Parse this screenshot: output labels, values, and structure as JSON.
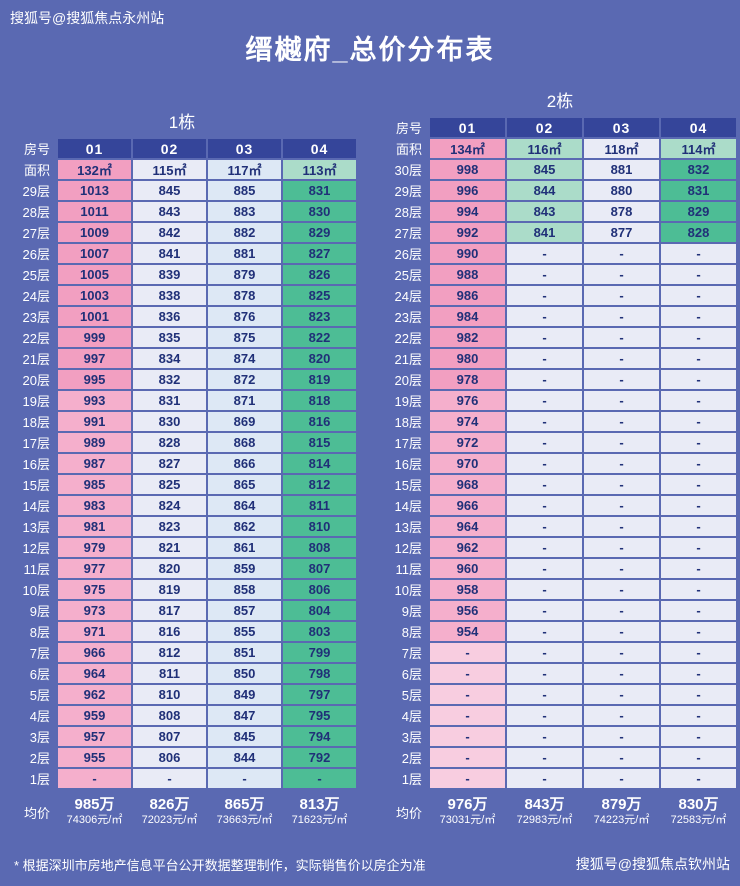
{
  "page": {
    "watermark_top": "搜狐号@搜狐焦点永州站",
    "title": "缙樾府_总价分布表",
    "footnote": "* 根据深圳市房地产信息平台公开数据整理制作，实际销售价以房企为准",
    "watermark_bottom": "搜狐号@搜狐焦点钦州站"
  },
  "palette": {
    "bg": "#5a69b2",
    "hd": "#35459a",
    "p1": "#f29fc1",
    "p2": "#f5afcc",
    "p3": "#f8cde0",
    "lv": "#e9ebf6",
    "bl": "#dde8f5",
    "mt": "#abdcc9",
    "gr": "#4dbd95",
    "cell_text": "#203078"
  },
  "chart_data": [
    {
      "type": "table",
      "title": "1栋",
      "room_label": "房号",
      "area_label": "面积",
      "avg_label": "均价",
      "rooms": [
        "01",
        "02",
        "03",
        "04"
      ],
      "areas": [
        "132㎡",
        "115㎡",
        "117㎡",
        "113㎡"
      ],
      "area_colors": [
        "p1",
        "lv",
        "bl",
        "mt"
      ],
      "floors": [
        {
          "floor": "29层",
          "c": [
            "p1",
            "lv",
            "bl",
            "gr"
          ],
          "values": [
            "1013",
            "845",
            "885",
            "831"
          ]
        },
        {
          "floor": "28层",
          "c": [
            "p1",
            "lv",
            "bl",
            "gr"
          ],
          "values": [
            "1011",
            "843",
            "883",
            "830"
          ]
        },
        {
          "floor": "27层",
          "c": [
            "p1",
            "lv",
            "bl",
            "gr"
          ],
          "values": [
            "1009",
            "842",
            "882",
            "829"
          ]
        },
        {
          "floor": "26层",
          "c": [
            "p1",
            "lv",
            "bl",
            "gr"
          ],
          "values": [
            "1007",
            "841",
            "881",
            "827"
          ]
        },
        {
          "floor": "25层",
          "c": [
            "p1",
            "lv",
            "bl",
            "gr"
          ],
          "values": [
            "1005",
            "839",
            "879",
            "826"
          ]
        },
        {
          "floor": "24层",
          "c": [
            "p1",
            "lv",
            "bl",
            "gr"
          ],
          "values": [
            "1003",
            "838",
            "878",
            "825"
          ]
        },
        {
          "floor": "23层",
          "c": [
            "p1",
            "lv",
            "bl",
            "gr"
          ],
          "values": [
            "1001",
            "836",
            "876",
            "823"
          ]
        },
        {
          "floor": "22层",
          "c": [
            "p1",
            "lv",
            "bl",
            "gr"
          ],
          "values": [
            "999",
            "835",
            "875",
            "822"
          ]
        },
        {
          "floor": "21层",
          "c": [
            "p1",
            "lv",
            "bl",
            "gr"
          ],
          "values": [
            "997",
            "834",
            "874",
            "820"
          ]
        },
        {
          "floor": "20层",
          "c": [
            "p1",
            "lv",
            "bl",
            "gr"
          ],
          "values": [
            "995",
            "832",
            "872",
            "819"
          ]
        },
        {
          "floor": "19层",
          "c": [
            "p2",
            "lv",
            "bl",
            "gr"
          ],
          "values": [
            "993",
            "831",
            "871",
            "818"
          ]
        },
        {
          "floor": "18层",
          "c": [
            "p2",
            "lv",
            "bl",
            "gr"
          ],
          "values": [
            "991",
            "830",
            "869",
            "816"
          ]
        },
        {
          "floor": "17层",
          "c": [
            "p2",
            "lv",
            "bl",
            "gr"
          ],
          "values": [
            "989",
            "828",
            "868",
            "815"
          ]
        },
        {
          "floor": "16层",
          "c": [
            "p2",
            "lv",
            "bl",
            "gr"
          ],
          "values": [
            "987",
            "827",
            "866",
            "814"
          ]
        },
        {
          "floor": "15层",
          "c": [
            "p2",
            "lv",
            "bl",
            "gr"
          ],
          "values": [
            "985",
            "825",
            "865",
            "812"
          ]
        },
        {
          "floor": "14层",
          "c": [
            "p2",
            "lv",
            "bl",
            "gr"
          ],
          "values": [
            "983",
            "824",
            "864",
            "811"
          ]
        },
        {
          "floor": "13层",
          "c": [
            "p2",
            "lv",
            "bl",
            "gr"
          ],
          "values": [
            "981",
            "823",
            "862",
            "810"
          ]
        },
        {
          "floor": "12层",
          "c": [
            "p2",
            "lv",
            "bl",
            "gr"
          ],
          "values": [
            "979",
            "821",
            "861",
            "808"
          ]
        },
        {
          "floor": "11层",
          "c": [
            "p2",
            "lv",
            "bl",
            "gr"
          ],
          "values": [
            "977",
            "820",
            "859",
            "807"
          ]
        },
        {
          "floor": "10层",
          "c": [
            "p2",
            "lv",
            "bl",
            "gr"
          ],
          "values": [
            "975",
            "819",
            "858",
            "806"
          ]
        },
        {
          "floor": "9层",
          "c": [
            "p2",
            "lv",
            "bl",
            "gr"
          ],
          "values": [
            "973",
            "817",
            "857",
            "804"
          ]
        },
        {
          "floor": "8层",
          "c": [
            "p2",
            "lv",
            "bl",
            "gr"
          ],
          "values": [
            "971",
            "816",
            "855",
            "803"
          ]
        },
        {
          "floor": "7层",
          "c": [
            "p2",
            "lv",
            "bl",
            "gr"
          ],
          "values": [
            "966",
            "812",
            "851",
            "799"
          ]
        },
        {
          "floor": "6层",
          "c": [
            "p2",
            "lv",
            "bl",
            "gr"
          ],
          "values": [
            "964",
            "811",
            "850",
            "798"
          ]
        },
        {
          "floor": "5层",
          "c": [
            "p2",
            "lv",
            "bl",
            "gr"
          ],
          "values": [
            "962",
            "810",
            "849",
            "797"
          ]
        },
        {
          "floor": "4层",
          "c": [
            "p2",
            "lv",
            "bl",
            "gr"
          ],
          "values": [
            "959",
            "808",
            "847",
            "795"
          ]
        },
        {
          "floor": "3层",
          "c": [
            "p2",
            "lv",
            "bl",
            "gr"
          ],
          "values": [
            "957",
            "807",
            "845",
            "794"
          ]
        },
        {
          "floor": "2层",
          "c": [
            "p2",
            "lv",
            "bl",
            "gr"
          ],
          "values": [
            "955",
            "806",
            "844",
            "792"
          ]
        },
        {
          "floor": "1层",
          "c": [
            "p2",
            "lv",
            "bl",
            "gr"
          ],
          "values": [
            "-",
            "-",
            "-",
            "-"
          ]
        }
      ],
      "avg": [
        {
          "price": "985万",
          "unit": "74306元/㎡"
        },
        {
          "price": "826万",
          "unit": "72023元/㎡"
        },
        {
          "price": "865万",
          "unit": "73663元/㎡"
        },
        {
          "price": "813万",
          "unit": "71623元/㎡"
        }
      ]
    },
    {
      "type": "table",
      "title": "2栋",
      "room_label": "房号",
      "area_label": "面积",
      "avg_label": "均价",
      "rooms": [
        "01",
        "02",
        "03",
        "04"
      ],
      "areas": [
        "134㎡",
        "116㎡",
        "118㎡",
        "114㎡"
      ],
      "area_colors": [
        "p1",
        "mt",
        "lv",
        "mt"
      ],
      "floors": [
        {
          "floor": "30层",
          "c": [
            "p1",
            "mt",
            "lv",
            "gr"
          ],
          "values": [
            "998",
            "845",
            "881",
            "832"
          ]
        },
        {
          "floor": "29层",
          "c": [
            "p1",
            "mt",
            "lv",
            "gr"
          ],
          "values": [
            "996",
            "844",
            "880",
            "831"
          ]
        },
        {
          "floor": "28层",
          "c": [
            "p1",
            "mt",
            "lv",
            "gr"
          ],
          "values": [
            "994",
            "843",
            "878",
            "829"
          ]
        },
        {
          "floor": "27层",
          "c": [
            "p1",
            "mt",
            "lv",
            "gr"
          ],
          "values": [
            "992",
            "841",
            "877",
            "828"
          ]
        },
        {
          "floor": "26层",
          "c": [
            "p1",
            "lv",
            "lv",
            "lv"
          ],
          "values": [
            "990",
            "-",
            "-",
            "-"
          ]
        },
        {
          "floor": "25层",
          "c": [
            "p1",
            "lv",
            "lv",
            "lv"
          ],
          "values": [
            "988",
            "-",
            "-",
            "-"
          ]
        },
        {
          "floor": "24层",
          "c": [
            "p1",
            "lv",
            "lv",
            "lv"
          ],
          "values": [
            "986",
            "-",
            "-",
            "-"
          ]
        },
        {
          "floor": "23层",
          "c": [
            "p1",
            "lv",
            "lv",
            "lv"
          ],
          "values": [
            "984",
            "-",
            "-",
            "-"
          ]
        },
        {
          "floor": "22层",
          "c": [
            "p1",
            "lv",
            "lv",
            "lv"
          ],
          "values": [
            "982",
            "-",
            "-",
            "-"
          ]
        },
        {
          "floor": "21层",
          "c": [
            "p1",
            "lv",
            "lv",
            "lv"
          ],
          "values": [
            "980",
            "-",
            "-",
            "-"
          ]
        },
        {
          "floor": "20层",
          "c": [
            "p1",
            "lv",
            "lv",
            "lv"
          ],
          "values": [
            "978",
            "-",
            "-",
            "-"
          ]
        },
        {
          "floor": "19层",
          "c": [
            "p2",
            "lv",
            "lv",
            "lv"
          ],
          "values": [
            "976",
            "-",
            "-",
            "-"
          ]
        },
        {
          "floor": "18层",
          "c": [
            "p2",
            "lv",
            "lv",
            "lv"
          ],
          "values": [
            "974",
            "-",
            "-",
            "-"
          ]
        },
        {
          "floor": "17层",
          "c": [
            "p2",
            "lv",
            "lv",
            "lv"
          ],
          "values": [
            "972",
            "-",
            "-",
            "-"
          ]
        },
        {
          "floor": "16层",
          "c": [
            "p2",
            "lv",
            "lv",
            "lv"
          ],
          "values": [
            "970",
            "-",
            "-",
            "-"
          ]
        },
        {
          "floor": "15层",
          "c": [
            "p2",
            "lv",
            "lv",
            "lv"
          ],
          "values": [
            "968",
            "-",
            "-",
            "-"
          ]
        },
        {
          "floor": "14层",
          "c": [
            "p2",
            "lv",
            "lv",
            "lv"
          ],
          "values": [
            "966",
            "-",
            "-",
            "-"
          ]
        },
        {
          "floor": "13层",
          "c": [
            "p2",
            "lv",
            "lv",
            "lv"
          ],
          "values": [
            "964",
            "-",
            "-",
            "-"
          ]
        },
        {
          "floor": "12层",
          "c": [
            "p2",
            "lv",
            "lv",
            "lv"
          ],
          "values": [
            "962",
            "-",
            "-",
            "-"
          ]
        },
        {
          "floor": "11层",
          "c": [
            "p2",
            "lv",
            "lv",
            "lv"
          ],
          "values": [
            "960",
            "-",
            "-",
            "-"
          ]
        },
        {
          "floor": "10层",
          "c": [
            "p2",
            "lv",
            "lv",
            "lv"
          ],
          "values": [
            "958",
            "-",
            "-",
            "-"
          ]
        },
        {
          "floor": "9层",
          "c": [
            "p2",
            "lv",
            "lv",
            "lv"
          ],
          "values": [
            "956",
            "-",
            "-",
            "-"
          ]
        },
        {
          "floor": "8层",
          "c": [
            "p2",
            "lv",
            "lv",
            "lv"
          ],
          "values": [
            "954",
            "-",
            "-",
            "-"
          ]
        },
        {
          "floor": "7层",
          "c": [
            "p3",
            "lv",
            "lv",
            "lv"
          ],
          "values": [
            "-",
            "-",
            "-",
            "-"
          ]
        },
        {
          "floor": "6层",
          "c": [
            "p3",
            "lv",
            "lv",
            "lv"
          ],
          "values": [
            "-",
            "-",
            "-",
            "-"
          ]
        },
        {
          "floor": "5层",
          "c": [
            "p3",
            "lv",
            "lv",
            "lv"
          ],
          "values": [
            "-",
            "-",
            "-",
            "-"
          ]
        },
        {
          "floor": "4层",
          "c": [
            "p3",
            "lv",
            "lv",
            "lv"
          ],
          "values": [
            "-",
            "-",
            "-",
            "-"
          ]
        },
        {
          "floor": "3层",
          "c": [
            "p3",
            "lv",
            "lv",
            "lv"
          ],
          "values": [
            "-",
            "-",
            "-",
            "-"
          ]
        },
        {
          "floor": "2层",
          "c": [
            "p3",
            "lv",
            "lv",
            "lv"
          ],
          "values": [
            "-",
            "-",
            "-",
            "-"
          ]
        },
        {
          "floor": "1层",
          "c": [
            "p3",
            "lv",
            "lv",
            "lv"
          ],
          "values": [
            "-",
            "-",
            "-",
            "-"
          ]
        }
      ],
      "avg": [
        {
          "price": "976万",
          "unit": "73031元/㎡"
        },
        {
          "price": "843万",
          "unit": "72983元/㎡"
        },
        {
          "price": "879万",
          "unit": "74223元/㎡"
        },
        {
          "price": "830万",
          "unit": "72583元/㎡"
        }
      ]
    }
  ]
}
